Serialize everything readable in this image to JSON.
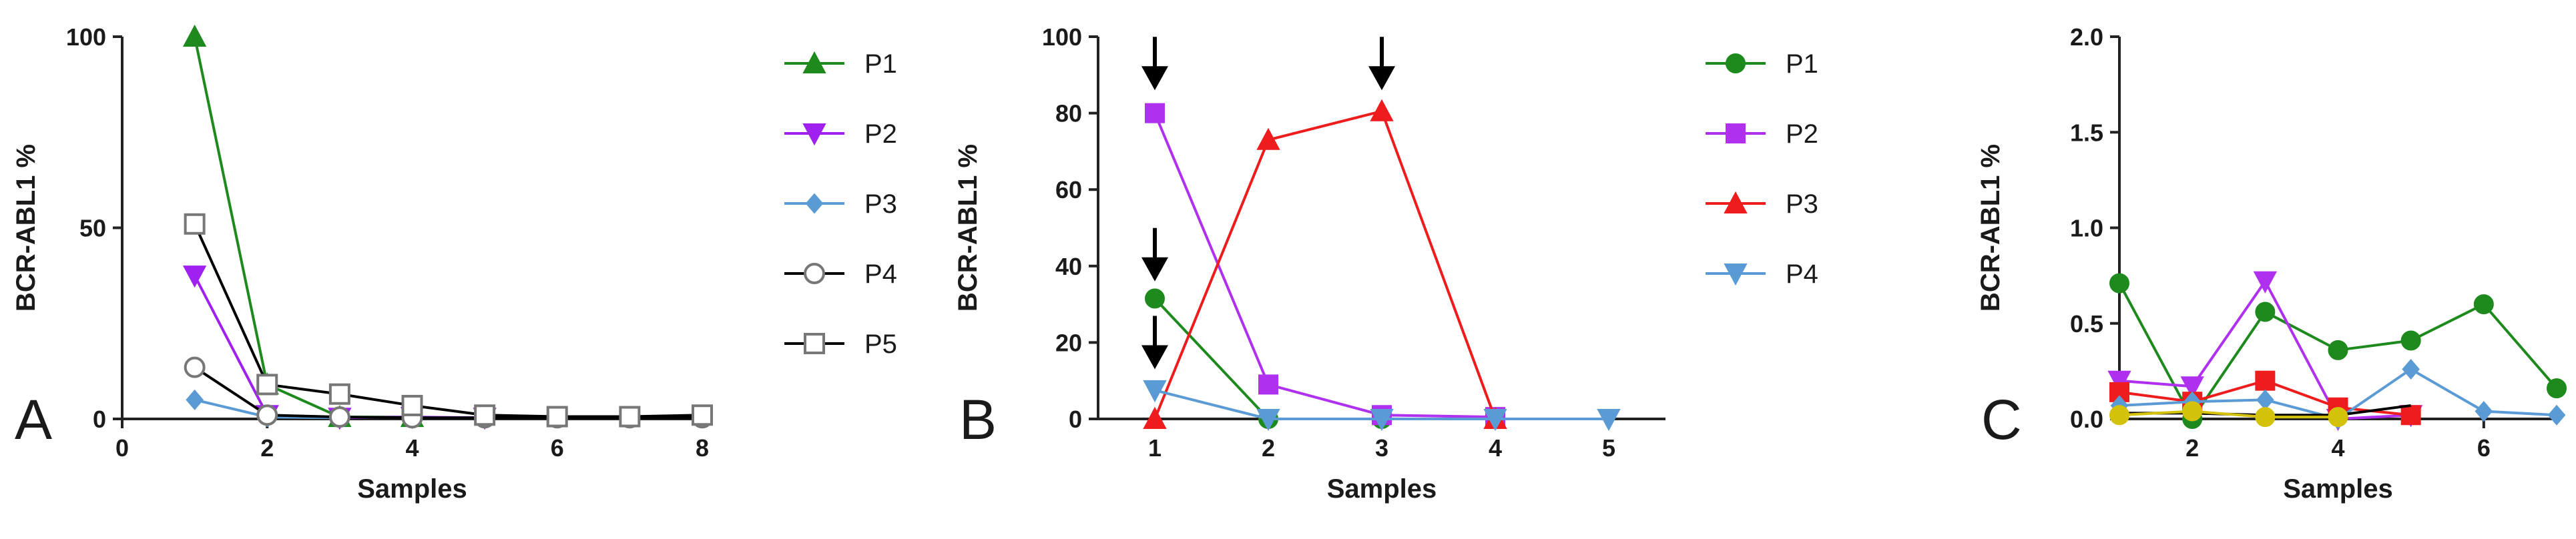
{
  "chart_data": [
    {
      "type": "line",
      "panel_label": "A",
      "xlabel": "Samples",
      "ylabel": "BCR-ABL1 %",
      "xlim": [
        0,
        8
      ],
      "ylim": [
        0,
        100
      ],
      "xticks": [
        0,
        2,
        4,
        6,
        8
      ],
      "yticks": [
        0,
        50,
        100
      ],
      "legend": "right",
      "series": [
        {
          "name": "P1",
          "color": "#1e8a1e",
          "marker": "triangle-up",
          "fill": true,
          "x": [
            1,
            2,
            3,
            4
          ],
          "y": [
            100,
            9,
            0.5,
            0.5
          ]
        },
        {
          "name": "P2",
          "color": "#a020f0",
          "marker": "triangle-down",
          "fill": true,
          "x": [
            1,
            2,
            3,
            4,
            5
          ],
          "y": [
            37.5,
            1,
            0.3,
            0.5,
            0.3
          ]
        },
        {
          "name": "P3",
          "color": "#5b9bd5",
          "marker": "diamond",
          "fill": true,
          "x": [
            1,
            2,
            3
          ],
          "y": [
            5,
            0.5,
            0.3
          ]
        },
        {
          "name": "P4",
          "color": "#777777",
          "marker": "circle-open",
          "fill": false,
          "line": "#000000",
          "x": [
            1,
            2,
            3,
            4,
            5,
            6,
            7,
            8
          ],
          "y": [
            13.5,
            1,
            0.5,
            0.3,
            0.3,
            0.3,
            0.3,
            0.3
          ]
        },
        {
          "name": "P5",
          "color": "#777777",
          "marker": "square-open",
          "fill": false,
          "line": "#000000",
          "x": [
            1,
            2,
            3,
            4,
            5,
            6,
            7,
            8
          ],
          "y": [
            51,
            9,
            6.5,
            3.5,
            1,
            0.6,
            0.6,
            1
          ]
        }
      ]
    },
    {
      "type": "line",
      "panel_label": "B",
      "xlabel": "Samples",
      "ylabel": "BCR-ABL1 %",
      "xlim": [
        0.5,
        5.5
      ],
      "ylim": [
        0,
        100
      ],
      "xticks": [
        1,
        2,
        3,
        4,
        5
      ],
      "yticks": [
        0,
        20,
        40,
        60,
        80,
        100
      ],
      "legend": "right",
      "series": [
        {
          "name": "P1",
          "color": "#1e8a1e",
          "marker": "circle",
          "fill": true,
          "x": [
            1,
            2,
            3
          ],
          "y": [
            31.5,
            0,
            0
          ]
        },
        {
          "name": "P2",
          "color": "#b030f0",
          "marker": "square",
          "fill": true,
          "x": [
            1,
            2,
            3,
            4
          ],
          "y": [
            80,
            9,
            1,
            0.5
          ]
        },
        {
          "name": "P3",
          "color": "#ee1c1c",
          "marker": "triangle-up",
          "fill": true,
          "x": [
            1,
            2,
            3,
            4
          ],
          "y": [
            0,
            73,
            80.5,
            0
          ]
        },
        {
          "name": "P4",
          "color": "#5b9bd5",
          "marker": "triangle-down",
          "fill": true,
          "x": [
            1,
            2,
            3,
            4,
            5
          ],
          "y": [
            7.5,
            0,
            0,
            0,
            0
          ]
        }
      ],
      "annotations": [
        {
          "type": "arrow",
          "x": 1,
          "y_tip": 86
        },
        {
          "type": "arrow",
          "x": 3,
          "y_tip": 86
        },
        {
          "type": "arrow",
          "x": 1,
          "y_tip": 36
        },
        {
          "type": "arrow",
          "x": 1,
          "y_tip": 13
        }
      ]
    },
    {
      "type": "line",
      "panel_label": "C",
      "xlabel": "Samples",
      "ylabel": "BCR-ABL1 %",
      "xlim": [
        1,
        7
      ],
      "ylim": [
        0,
        2
      ],
      "xticks": [
        2,
        4,
        6
      ],
      "yticks": [
        0.0,
        0.5,
        1.0,
        1.5,
        2.0
      ],
      "ytick_labels": [
        "0.0",
        "0.5",
        "1.0",
        "1.5",
        "2.0"
      ],
      "legend": "none",
      "series": [
        {
          "color": "#1e8a1e",
          "marker": "circle",
          "fill": true,
          "x": [
            1,
            2,
            3,
            4,
            5,
            6,
            7
          ],
          "y": [
            0.71,
            0.0,
            0.56,
            0.36,
            0.41,
            0.6,
            0.16
          ]
        },
        {
          "color": "#b030f0",
          "marker": "triangle-down",
          "fill": true,
          "x": [
            1,
            2,
            3,
            4,
            5
          ],
          "y": [
            0.2,
            0.17,
            0.72,
            0.0,
            0.02
          ]
        },
        {
          "color": "#ee1c1c",
          "marker": "square",
          "fill": true,
          "x": [
            1,
            2,
            3,
            4,
            5
          ],
          "y": [
            0.14,
            0.09,
            0.2,
            0.06,
            0.02
          ]
        },
        {
          "color": "#5b9bd5",
          "marker": "diamond",
          "fill": true,
          "x": [
            1,
            2,
            3,
            4,
            5,
            6,
            7
          ],
          "y": [
            0.07,
            0.09,
            0.1,
            0.0,
            0.26,
            0.04,
            0.02
          ]
        },
        {
          "color": "#000000",
          "marker": "none",
          "fill": false,
          "x": [
            1,
            2,
            3,
            4,
            5
          ],
          "y": [
            0.03,
            0.03,
            0.02,
            0.02,
            0.07
          ]
        },
        {
          "color": "#d4c20a",
          "marker": "circle",
          "fill": true,
          "x": [
            1,
            2,
            3,
            4
          ],
          "y": [
            0.02,
            0.04,
            0.01,
            0.01
          ]
        }
      ]
    }
  ]
}
